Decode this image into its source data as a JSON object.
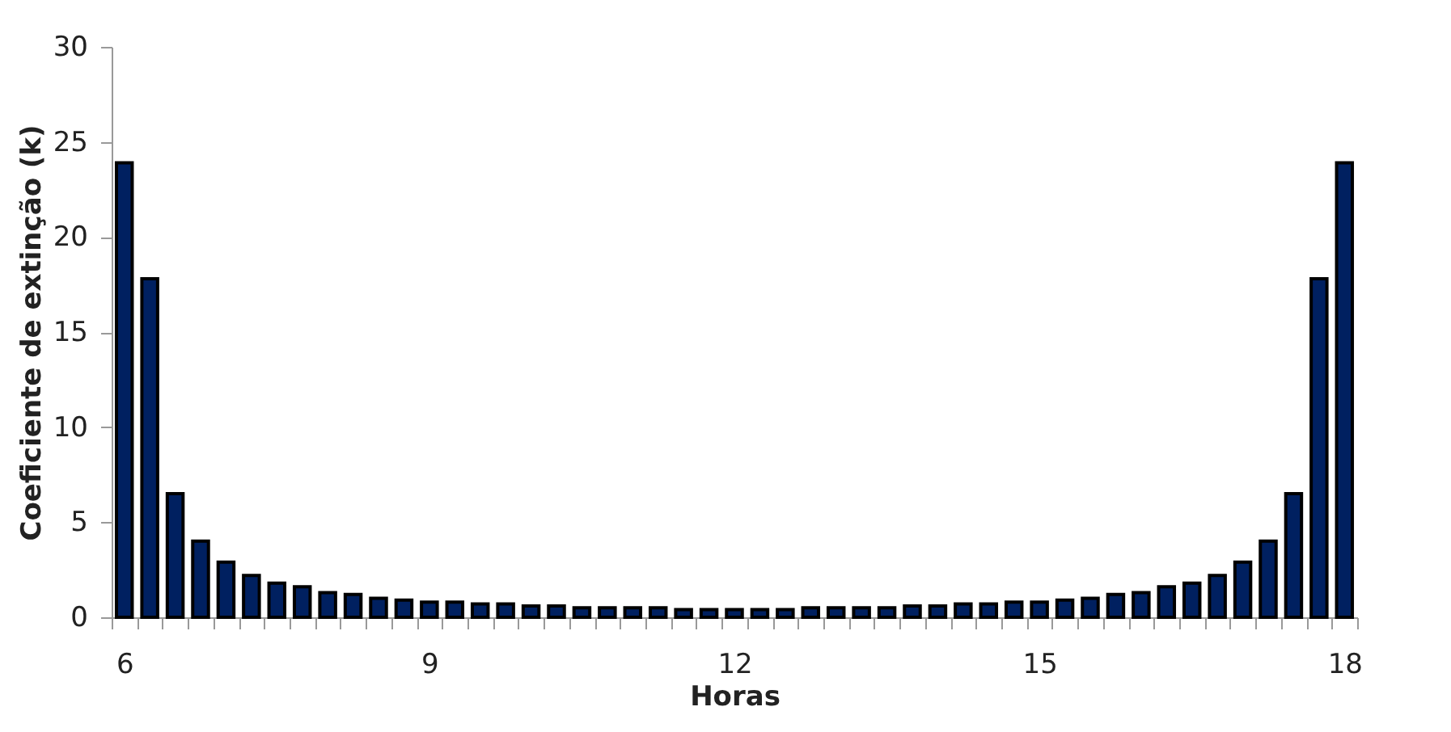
{
  "chart_data": {
    "type": "bar",
    "xlabel": "Horas",
    "ylabel": "Coeficiente de extinção (k)",
    "categories": [
      "6",
      null,
      null,
      null,
      null,
      null,
      null,
      null,
      null,
      null,
      null,
      null,
      "9",
      null,
      null,
      null,
      null,
      null,
      null,
      null,
      null,
      null,
      null,
      null,
      "12",
      null,
      null,
      null,
      null,
      null,
      null,
      null,
      null,
      null,
      null,
      null,
      "15",
      null,
      null,
      null,
      null,
      null,
      null,
      null,
      null,
      null,
      null,
      null,
      "18"
    ],
    "values": [
      23.9,
      17.8,
      6.5,
      4.0,
      2.9,
      2.2,
      1.8,
      1.6,
      1.3,
      1.2,
      1.0,
      0.9,
      0.8,
      0.8,
      0.7,
      0.7,
      0.6,
      0.6,
      0.5,
      0.5,
      0.5,
      0.5,
      0.4,
      0.4,
      0.4,
      0.4,
      0.4,
      0.5,
      0.5,
      0.5,
      0.5,
      0.6,
      0.6,
      0.7,
      0.7,
      0.8,
      0.8,
      0.9,
      1.0,
      1.2,
      1.3,
      1.6,
      1.8,
      2.2,
      2.9,
      4.0,
      6.5,
      17.8,
      23.9
    ],
    "color": "#002060",
    "ylim": [
      0,
      30
    ],
    "yticks": [
      0,
      5,
      10,
      15,
      20,
      25,
      30
    ],
    "grid": false
  }
}
